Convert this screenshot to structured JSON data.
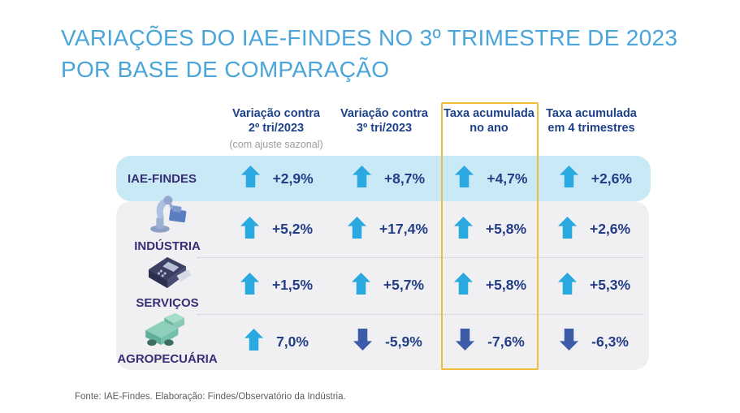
{
  "title": {
    "line1": "VARIAÇÕES DO IAE-FINDES NO 3º TRIMESTRE DE 2023",
    "line2": "POR BASE DE COMPARAÇÃO"
  },
  "colors": {
    "title": "#4AA5DB",
    "header_text": "#1E428A",
    "subnote_text": "#9C9CA0",
    "value_text": "#233E87",
    "row_label_text": "#362F76",
    "up_arrow": "#2AA9E0",
    "down_arrow": "#3C5CA9",
    "highlight_border": "#EDBF3B",
    "blue_row_bg": "#C9E9F6",
    "gray_card_bg": "#F0F0F2",
    "footer_text": "#5E5E5E"
  },
  "columns": [
    {
      "label_line1": "Variação contra",
      "label_line2": "2º tri/2023",
      "subnote": "(com ajuste sazonal)",
      "highlighted": false
    },
    {
      "label_line1": "Variação contra",
      "label_line2": "3º tri/2023",
      "subnote": "",
      "highlighted": false
    },
    {
      "label_line1": "Taxa acumulada",
      "label_line2": "no ano",
      "subnote": "",
      "highlighted": true
    },
    {
      "label_line1": "Taxa acumulada",
      "label_line2": "em 4 trimestres",
      "subnote": "",
      "highlighted": false
    }
  ],
  "rows": [
    {
      "label": "IAE-FINDES",
      "icon": "",
      "values": [
        {
          "text": "+2,9%",
          "direction": "up"
        },
        {
          "text": "+8,7%",
          "direction": "up"
        },
        {
          "text": "+4,7%",
          "direction": "up"
        },
        {
          "text": "+2,6%",
          "direction": "up"
        }
      ]
    },
    {
      "label": "INDÚSTRIA",
      "icon": "robot-arm-icon",
      "values": [
        {
          "text": "+5,2%",
          "direction": "up"
        },
        {
          "text": "+17,4%",
          "direction": "up"
        },
        {
          "text": "+5,8%",
          "direction": "up"
        },
        {
          "text": "+2,6%",
          "direction": "up"
        }
      ]
    },
    {
      "label": "SERVIÇOS",
      "icon": "pos-terminal-icon",
      "values": [
        {
          "text": "+1,5%",
          "direction": "up"
        },
        {
          "text": "+5,7%",
          "direction": "up"
        },
        {
          "text": "+5,8%",
          "direction": "up"
        },
        {
          "text": "+5,3%",
          "direction": "up"
        }
      ]
    },
    {
      "label": "AGROPECUÁRIA",
      "icon": "harvester-icon",
      "values": [
        {
          "text": "7,0%",
          "direction": "up"
        },
        {
          "text": "-5,9%",
          "direction": "down"
        },
        {
          "text": "-7,6%",
          "direction": "down"
        },
        {
          "text": "-6,3%",
          "direction": "down"
        }
      ]
    }
  ],
  "footer": {
    "source": "Fonte: IAE-Findes. Elaboração: Findes/Observatório da Indústria."
  },
  "chart_data": {
    "type": "table",
    "title": "Variações do IAE-Findes no 3º trimestre de 2023 por base de comparação",
    "categories": [
      "IAE-FINDES",
      "INDÚSTRIA",
      "SERVIÇOS",
      "AGROPECUÁRIA"
    ],
    "series": [
      {
        "name": "Variação contra 2º tri/2023 (com ajuste sazonal)",
        "values": [
          2.9,
          5.2,
          1.5,
          7.0
        ]
      },
      {
        "name": "Variação contra 3º tri/2023",
        "values": [
          8.7,
          17.4,
          5.7,
          -5.9
        ]
      },
      {
        "name": "Taxa acumulada no ano",
        "values": [
          4.7,
          5.8,
          5.8,
          -7.6
        ]
      },
      {
        "name": "Taxa acumulada em 4 trimestres",
        "values": [
          2.6,
          2.6,
          5.3,
          -6.3
        ]
      }
    ],
    "unit": "%",
    "highlighted_column": "Taxa acumulada no ano",
    "source": "Fonte: IAE-Findes. Elaboração: Findes/Observatório da Indústria."
  }
}
